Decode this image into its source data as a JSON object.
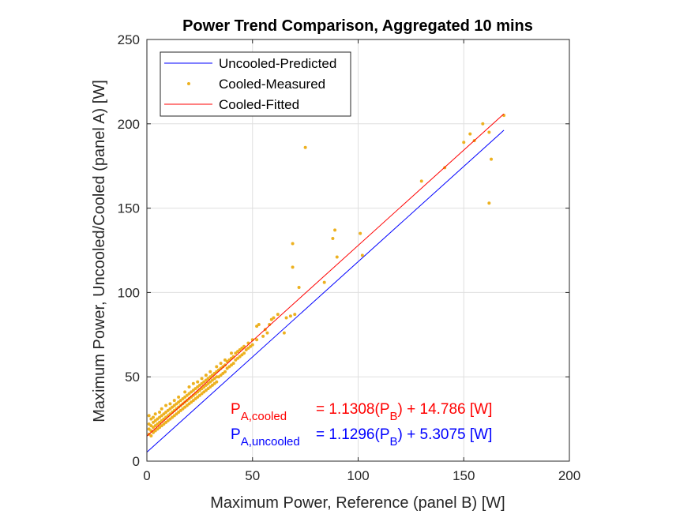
{
  "chart_data": {
    "type": "scatter",
    "title": "Power Trend Comparison, Aggregated 10 mins",
    "xlabel": "Maximum Power, Reference (panel B) [W]",
    "ylabel": "Maximum Power, Uncooled/Cooled (panel A) [W]",
    "xlim": [
      0,
      200
    ],
    "ylim": [
      0,
      250
    ],
    "xticks": [
      "0",
      "50",
      "100",
      "150",
      "200"
    ],
    "yticks": [
      "0",
      "50",
      "100",
      "150",
      "200",
      "250"
    ],
    "grid": true,
    "legend_position": "top-left",
    "series": [
      {
        "name": "Uncooled-Predicted",
        "kind": "line",
        "color": "#0000ff",
        "x": [
          0,
          169
        ],
        "y": [
          5.3075,
          196.2
        ]
      },
      {
        "name": "Cooled-Measured",
        "kind": "scatter",
        "color": "#edb120",
        "points": [
          [
            1,
            16
          ],
          [
            1,
            19
          ],
          [
            1,
            22
          ],
          [
            1,
            27
          ],
          [
            2,
            15
          ],
          [
            2,
            18
          ],
          [
            2,
            21
          ],
          [
            2,
            25
          ],
          [
            3,
            17
          ],
          [
            3,
            20
          ],
          [
            3,
            23
          ],
          [
            3,
            26
          ],
          [
            4,
            18
          ],
          [
            4,
            21
          ],
          [
            4,
            24
          ],
          [
            4,
            28
          ],
          [
            5,
            19
          ],
          [
            5,
            22
          ],
          [
            5,
            25
          ],
          [
            6,
            20
          ],
          [
            6,
            23
          ],
          [
            6,
            26
          ],
          [
            6,
            29
          ],
          [
            7,
            21
          ],
          [
            7,
            24
          ],
          [
            7,
            27
          ],
          [
            7,
            31
          ],
          [
            8,
            22
          ],
          [
            8,
            25
          ],
          [
            8,
            28
          ],
          [
            9,
            23
          ],
          [
            9,
            26
          ],
          [
            9,
            29
          ],
          [
            9,
            33
          ],
          [
            10,
            24
          ],
          [
            10,
            27
          ],
          [
            10,
            30
          ],
          [
            11,
            25
          ],
          [
            11,
            28
          ],
          [
            11,
            31
          ],
          [
            11,
            34
          ],
          [
            12,
            26
          ],
          [
            12,
            29
          ],
          [
            12,
            32
          ],
          [
            13,
            27
          ],
          [
            13,
            30
          ],
          [
            13,
            33
          ],
          [
            13,
            36
          ],
          [
            14,
            28
          ],
          [
            14,
            31
          ],
          [
            14,
            34
          ],
          [
            15,
            29
          ],
          [
            15,
            32
          ],
          [
            15,
            35
          ],
          [
            15,
            38
          ],
          [
            16,
            30
          ],
          [
            16,
            33
          ],
          [
            16,
            36
          ],
          [
            17,
            31
          ],
          [
            17,
            34
          ],
          [
            17,
            37
          ],
          [
            18,
            32
          ],
          [
            18,
            35
          ],
          [
            18,
            38
          ],
          [
            18,
            41
          ],
          [
            19,
            33
          ],
          [
            19,
            36
          ],
          [
            19,
            39
          ],
          [
            20,
            34
          ],
          [
            20,
            37
          ],
          [
            20,
            40
          ],
          [
            20,
            44
          ],
          [
            21,
            35
          ],
          [
            21,
            38
          ],
          [
            21,
            41
          ],
          [
            22,
            36
          ],
          [
            22,
            39
          ],
          [
            22,
            42
          ],
          [
            22,
            46
          ],
          [
            23,
            37
          ],
          [
            23,
            40
          ],
          [
            23,
            43
          ],
          [
            24,
            38
          ],
          [
            24,
            41
          ],
          [
            24,
            44
          ],
          [
            24,
            47
          ],
          [
            25,
            39
          ],
          [
            25,
            42
          ],
          [
            25,
            45
          ],
          [
            26,
            40
          ],
          [
            26,
            43
          ],
          [
            26,
            46
          ],
          [
            26,
            49
          ],
          [
            27,
            41
          ],
          [
            27,
            44
          ],
          [
            27,
            47
          ],
          [
            28,
            42
          ],
          [
            28,
            45
          ],
          [
            28,
            48
          ],
          [
            28,
            51
          ],
          [
            29,
            43
          ],
          [
            29,
            46
          ],
          [
            29,
            49
          ],
          [
            30,
            44
          ],
          [
            30,
            47
          ],
          [
            30,
            50
          ],
          [
            30,
            53
          ],
          [
            31,
            45
          ],
          [
            31,
            48
          ],
          [
            31,
            51
          ],
          [
            32,
            46
          ],
          [
            32,
            49
          ],
          [
            32,
            52
          ],
          [
            33,
            47
          ],
          [
            33,
            50
          ],
          [
            33,
            53
          ],
          [
            33,
            56
          ],
          [
            34,
            50
          ],
          [
            34,
            54
          ],
          [
            35,
            51
          ],
          [
            35,
            55
          ],
          [
            35,
            58
          ],
          [
            36,
            52
          ],
          [
            36,
            56
          ],
          [
            37,
            53
          ],
          [
            37,
            57
          ],
          [
            37,
            60
          ],
          [
            38,
            55
          ],
          [
            38,
            59
          ],
          [
            39,
            56
          ],
          [
            39,
            60
          ],
          [
            40,
            57
          ],
          [
            40,
            61
          ],
          [
            40,
            64
          ],
          [
            41,
            58
          ],
          [
            41,
            62
          ],
          [
            42,
            60
          ],
          [
            42,
            64
          ],
          [
            43,
            61
          ],
          [
            43,
            65
          ],
          [
            44,
            62
          ],
          [
            44,
            66
          ],
          [
            45,
            63
          ],
          [
            45,
            67
          ],
          [
            46,
            64
          ],
          [
            46,
            68
          ],
          [
            47,
            66
          ],
          [
            48,
            67
          ],
          [
            48,
            70
          ],
          [
            49,
            68
          ],
          [
            50,
            69
          ],
          [
            50,
            72
          ],
          [
            52,
            72
          ],
          [
            52,
            80
          ],
          [
            53,
            81
          ],
          [
            55,
            74
          ],
          [
            56,
            78
          ],
          [
            57,
            76
          ],
          [
            58,
            81
          ],
          [
            59,
            84
          ],
          [
            60,
            85
          ],
          [
            62,
            87
          ],
          [
            65,
            76
          ],
          [
            66,
            85
          ],
          [
            68,
            86
          ],
          [
            69,
            129
          ],
          [
            69,
            115
          ],
          [
            70,
            87
          ],
          [
            72,
            103
          ],
          [
            75,
            186
          ],
          [
            84,
            106
          ],
          [
            88,
            132
          ],
          [
            89,
            137
          ],
          [
            90,
            121
          ],
          [
            101,
            135
          ],
          [
            102,
            122
          ],
          [
            130,
            166
          ],
          [
            141,
            174
          ],
          [
            150,
            189
          ],
          [
            153,
            194
          ],
          [
            155,
            190
          ],
          [
            159,
            200
          ],
          [
            162,
            195
          ],
          [
            163,
            179
          ],
          [
            162,
            153
          ],
          [
            169,
            205
          ]
        ]
      },
      {
        "name": "Cooled-Fitted",
        "kind": "line",
        "color": "#ff0000",
        "x": [
          0,
          169
        ],
        "y": [
          14.786,
          205.9
        ]
      }
    ],
    "annotations": [
      {
        "color": "#ff0000",
        "base": "P",
        "subscript": "A,cooled",
        "text": "= 1.1308(P",
        "text_sub": "B",
        "text_end": ") + 14.786   [W]"
      },
      {
        "color": "#0000ff",
        "base": "P",
        "subscript": "A,uncooled",
        "text": "= 1.1296(P",
        "text_sub": "B",
        "text_end": ") + 5.3075   [W]"
      }
    ]
  }
}
